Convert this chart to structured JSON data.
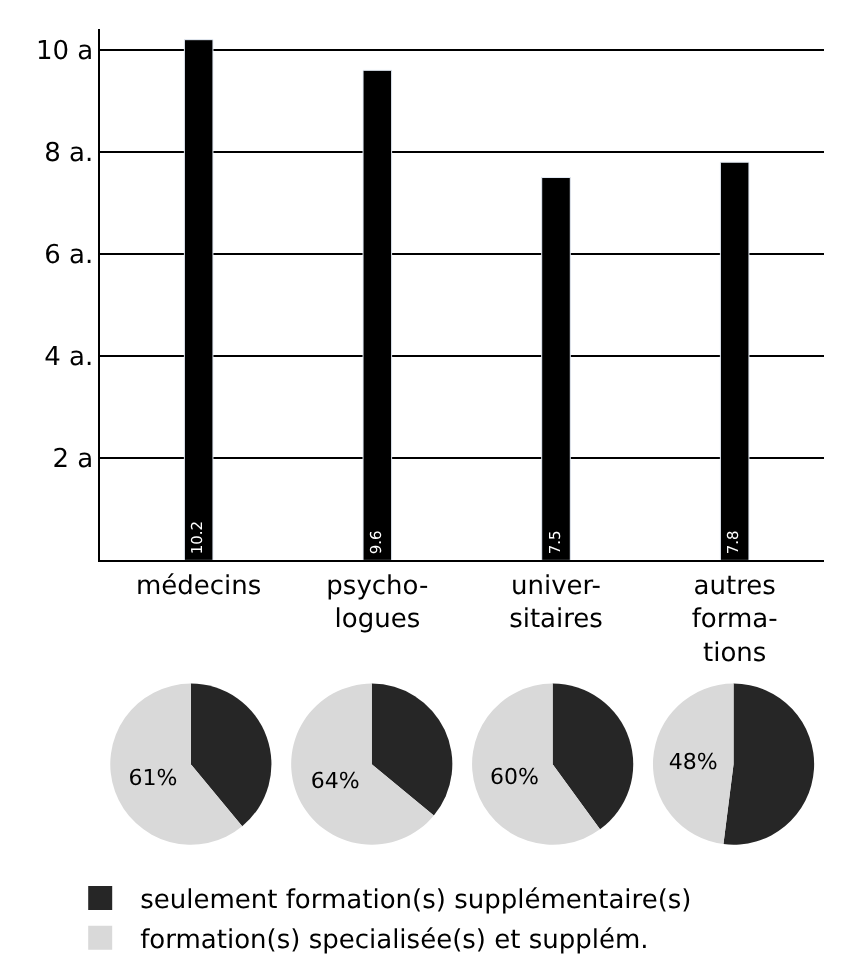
{
  "chart_data": [
    {
      "type": "bar",
      "categories": [
        "médecins",
        "psycho-\nlogues",
        "univer-\nsitaires",
        "autres\nforma-\ntions"
      ],
      "values": [
        10.2,
        9.6,
        7.5,
        7.8
      ],
      "color": "#000000",
      "ylim": [
        0,
        10.4
      ],
      "yticks": [
        {
          "value": 2,
          "label": "2 a"
        },
        {
          "value": 4,
          "label": "4 a."
        },
        {
          "value": 6,
          "label": "6 a."
        },
        {
          "value": 8,
          "label": "8 a."
        },
        {
          "value": 10,
          "label": "10 a"
        }
      ],
      "grid": "y",
      "data_labels": true
    },
    {
      "type": "pie",
      "categories": [
        "seulement formation(s) supplémentaire(s)",
        "formation(s) specialisée(s) et supplém."
      ],
      "values": [
        39,
        61
      ],
      "colors": [
        "#262626",
        "#d9d9d9"
      ],
      "value_labels": [
        null,
        "61%"
      ],
      "legend": "bottom"
    },
    {
      "type": "pie",
      "categories": [
        null,
        null
      ],
      "values": [
        36,
        64
      ],
      "colors": [
        "#262626",
        "#d9d9d9"
      ],
      "value_labels": [
        null,
        "64%"
      ]
    },
    {
      "type": "pie",
      "categories": [
        null,
        null
      ],
      "values": [
        40,
        60
      ],
      "colors": [
        "#262626",
        "#d9d9d9"
      ],
      "value_labels": [
        null,
        "60%"
      ]
    },
    {
      "type": "pie",
      "categories": [
        null,
        null
      ],
      "values": [
        52,
        48
      ],
      "colors": [
        "#262626",
        "#d9d9d9"
      ],
      "value_labels": [
        null,
        "48%"
      ]
    }
  ]
}
